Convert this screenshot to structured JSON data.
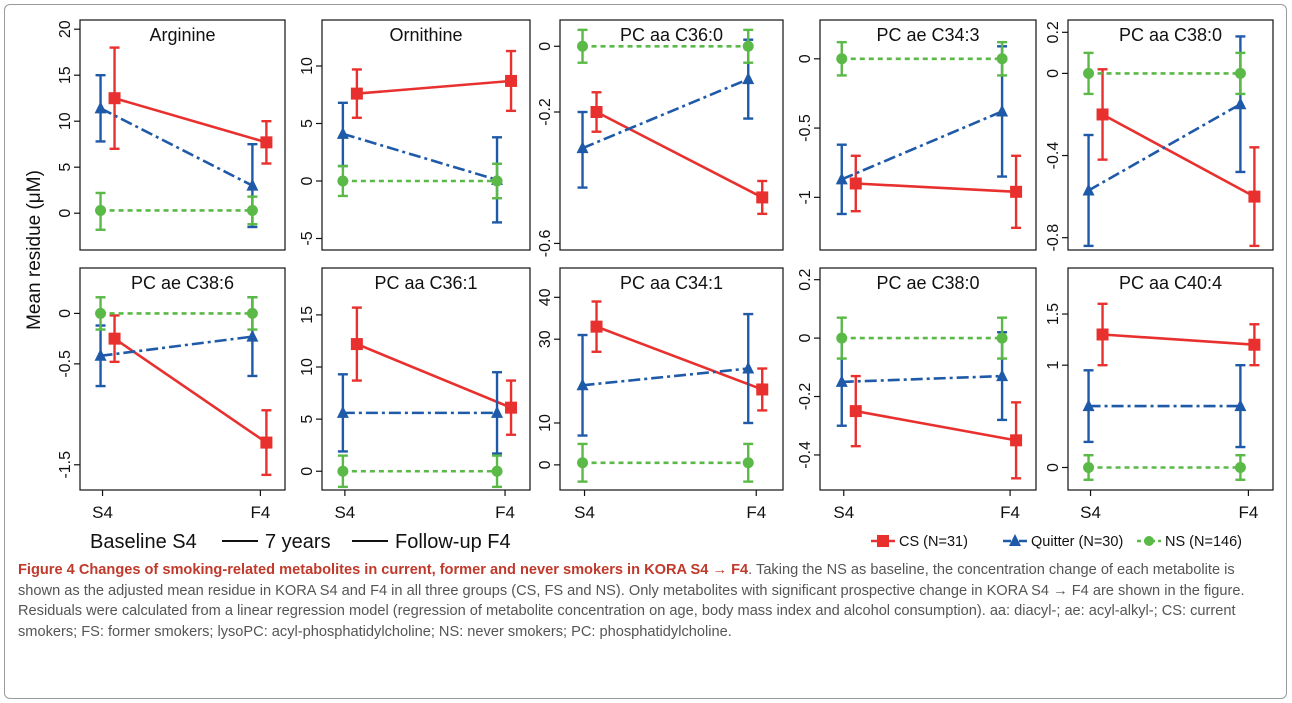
{
  "figure": {
    "ylabel": "Mean residue (μM)",
    "timeline": {
      "start": "Baseline S4",
      "middle": "7 years",
      "end": "Follow-up F4"
    },
    "legend": [
      {
        "label": "CS (N=31)",
        "color": "#e8312f",
        "marker": "square",
        "line": "solid"
      },
      {
        "label": "Quitter (N=30)",
        "color": "#1f5aa8",
        "marker": "triangle",
        "line": "dashdot"
      },
      {
        "label": "NS (N=146)",
        "color": "#5ab947",
        "marker": "circle",
        "line": "dotted"
      }
    ],
    "colors": {
      "cs": "#e8312f",
      "quitter": "#1f5aa8",
      "ns": "#5ab947"
    }
  },
  "caption": {
    "lead": "Figure 4",
    "title": "Changes of smoking-related metabolites in current, former and never smokers in KORA S4",
    "title_arrow": "→",
    "title_end": "F4",
    "line1": ". Taking the NS as baseline, the concentration change of each metabolite is shown as the adjusted mean residue in KORA S4 and F4 in all three groups (CS, FS and NS).",
    "line2": "Only metabolites with significant prospective change in KORA S4 → F4 are shown in the figure. Residuals were calculated from a linear regression model (regression of metabolite concentration on age, body mass index and alcohol consumption). aa: diacyl-; ae: acyl-alkyl-; CS: current smokers; FS: former smokers; lysoPC: acyl-phosphatidylcholine; NS: never smokers; PC: phosphatidylcholine."
  },
  "chart_data": [
    {
      "type": "line",
      "title": "Arginine",
      "categories": [
        "S4",
        "F4"
      ],
      "ylim": [
        -4,
        21
      ],
      "yticks": [
        0,
        5,
        10,
        15,
        20
      ],
      "series": [
        {
          "name": "CS (N=31)",
          "values": [
            12.5,
            7.7
          ],
          "lower": [
            7.0,
            5.4
          ],
          "upper": [
            18.0,
            10.0
          ]
        },
        {
          "name": "Quitter (N=30)",
          "values": [
            11.4,
            3.0
          ],
          "lower": [
            7.8,
            -1.5
          ],
          "upper": [
            15.0,
            7.5
          ]
        },
        {
          "name": "NS (N=146)",
          "values": [
            0.3,
            0.3
          ],
          "lower": [
            -1.8,
            -1.2
          ],
          "upper": [
            2.2,
            1.8
          ]
        }
      ]
    },
    {
      "type": "line",
      "title": "Ornithine",
      "categories": [
        "S4",
        "F4"
      ],
      "ylim": [
        -6,
        14
      ],
      "yticks": [
        -5,
        0,
        5,
        10
      ],
      "series": [
        {
          "name": "CS (N=31)",
          "values": [
            7.6,
            8.7
          ],
          "lower": [
            5.5,
            6.1
          ],
          "upper": [
            9.7,
            11.3
          ]
        },
        {
          "name": "Quitter (N=30)",
          "values": [
            4.1,
            0.1
          ],
          "lower": [
            1.3,
            -3.6
          ],
          "upper": [
            6.8,
            3.8
          ]
        },
        {
          "name": "NS (N=146)",
          "values": [
            0.0,
            0.0
          ],
          "lower": [
            -1.3,
            -1.5
          ],
          "upper": [
            1.3,
            1.5
          ]
        }
      ]
    },
    {
      "type": "line",
      "title": "PC aa C36:0",
      "categories": [
        "S4",
        "F4"
      ],
      "ylim": [
        -0.62,
        0.08
      ],
      "yticks": [
        -0.6,
        -0.2,
        0.0
      ],
      "series": [
        {
          "name": "CS (N=31)",
          "values": [
            -0.2,
            -0.46
          ],
          "lower": [
            -0.26,
            -0.51
          ],
          "upper": [
            -0.14,
            -0.41
          ]
        },
        {
          "name": "Quitter (N=30)",
          "values": [
            -0.31,
            -0.1
          ],
          "lower": [
            -0.43,
            -0.22
          ],
          "upper": [
            -0.2,
            0.02
          ]
        },
        {
          "name": "NS (N=146)",
          "values": [
            0.0,
            0.0
          ],
          "lower": [
            -0.05,
            -0.05
          ],
          "upper": [
            0.05,
            0.05
          ]
        }
      ]
    },
    {
      "type": "line",
      "title": "PC ae C34:3",
      "categories": [
        "S4",
        "F4"
      ],
      "ylim": [
        -1.38,
        0.28
      ],
      "yticks": [
        -1.0,
        -0.5,
        0.0
      ],
      "series": [
        {
          "name": "CS (N=31)",
          "values": [
            -0.9,
            -0.96
          ],
          "lower": [
            -1.1,
            -1.22
          ],
          "upper": [
            -0.7,
            -0.7
          ]
        },
        {
          "name": "Quitter (N=30)",
          "values": [
            -0.87,
            -0.38
          ],
          "lower": [
            -1.12,
            -0.85
          ],
          "upper": [
            -0.62,
            0.09
          ]
        },
        {
          "name": "NS (N=146)",
          "values": [
            0.0,
            0.0
          ],
          "lower": [
            -0.12,
            -0.12
          ],
          "upper": [
            0.12,
            0.12
          ]
        }
      ]
    },
    {
      "type": "line",
      "title": "PC aa C38:0",
      "categories": [
        "S4",
        "F4"
      ],
      "ylim": [
        -0.86,
        0.26
      ],
      "yticks": [
        -0.8,
        -0.4,
        0.0,
        0.2
      ],
      "series": [
        {
          "name": "CS (N=31)",
          "values": [
            -0.2,
            -0.6
          ],
          "lower": [
            -0.42,
            -0.84
          ],
          "upper": [
            0.02,
            -0.36
          ]
        },
        {
          "name": "Quitter (N=30)",
          "values": [
            -0.57,
            -0.15
          ],
          "lower": [
            -0.84,
            -0.48
          ],
          "upper": [
            -0.3,
            0.18
          ]
        },
        {
          "name": "NS (N=146)",
          "values": [
            0.0,
            0.0
          ],
          "lower": [
            -0.1,
            -0.1
          ],
          "upper": [
            0.1,
            0.1
          ]
        }
      ]
    },
    {
      "type": "line",
      "title": "PC ae C38:6",
      "categories": [
        "S4",
        "F4"
      ],
      "ylim": [
        -1.75,
        0.45
      ],
      "yticks": [
        -1.5,
        -0.5,
        0.0
      ],
      "series": [
        {
          "name": "CS (N=31)",
          "values": [
            -0.25,
            -1.28
          ],
          "lower": [
            -0.48,
            -1.6
          ],
          "upper": [
            -0.02,
            -0.96
          ]
        },
        {
          "name": "Quitter (N=30)",
          "values": [
            -0.42,
            -0.23
          ],
          "lower": [
            -0.72,
            -0.62
          ],
          "upper": [
            -0.12,
            0.16
          ]
        },
        {
          "name": "NS (N=146)",
          "values": [
            0.0,
            0.0
          ],
          "lower": [
            -0.16,
            -0.16
          ],
          "upper": [
            0.16,
            0.16
          ]
        }
      ]
    },
    {
      "type": "line",
      "title": "PC aa C36:1",
      "categories": [
        "S4",
        "F4"
      ],
      "ylim": [
        -1.8,
        19.5
      ],
      "yticks": [
        0,
        5,
        10,
        15
      ],
      "series": [
        {
          "name": "CS (N=31)",
          "values": [
            12.2,
            6.1
          ],
          "lower": [
            8.7,
            3.5
          ],
          "upper": [
            15.7,
            8.7
          ]
        },
        {
          "name": "Quitter (N=30)",
          "values": [
            5.6,
            5.6
          ],
          "lower": [
            1.9,
            1.7
          ],
          "upper": [
            9.3,
            9.5
          ]
        },
        {
          "name": "NS (N=146)",
          "values": [
            0.0,
            0.0
          ],
          "lower": [
            -1.5,
            -1.5
          ],
          "upper": [
            1.5,
            1.5
          ]
        }
      ]
    },
    {
      "type": "line",
      "title": "PC aa C34:1",
      "categories": [
        "S4",
        "F4"
      ],
      "ylim": [
        -6,
        47
      ],
      "yticks": [
        0,
        10,
        30,
        40
      ],
      "series": [
        {
          "name": "CS (N=31)",
          "values": [
            33,
            18
          ],
          "lower": [
            27,
            13
          ],
          "upper": [
            39,
            23
          ]
        },
        {
          "name": "Quitter (N=30)",
          "values": [
            19,
            23
          ],
          "lower": [
            7,
            10
          ],
          "upper": [
            31,
            36
          ]
        },
        {
          "name": "NS (N=146)",
          "values": [
            0.5,
            0.5
          ],
          "lower": [
            -4,
            -4
          ],
          "upper": [
            5,
            5
          ]
        }
      ]
    },
    {
      "type": "line",
      "title": "PC ae C38:0",
      "categories": [
        "S4",
        "F4"
      ],
      "ylim": [
        -0.52,
        0.24
      ],
      "yticks": [
        -0.4,
        -0.2,
        0.0,
        0.2
      ],
      "series": [
        {
          "name": "CS (N=31)",
          "values": [
            -0.25,
            -0.35
          ],
          "lower": [
            -0.37,
            -0.48
          ],
          "upper": [
            -0.13,
            -0.22
          ]
        },
        {
          "name": "Quitter (N=30)",
          "values": [
            -0.15,
            -0.13
          ],
          "lower": [
            -0.3,
            -0.28
          ],
          "upper": [
            0.0,
            0.02
          ]
        },
        {
          "name": "NS (N=146)",
          "values": [
            0.0,
            0.0
          ],
          "lower": [
            -0.07,
            -0.07
          ],
          "upper": [
            0.07,
            0.07
          ]
        }
      ]
    },
    {
      "type": "line",
      "title": "PC aa C40:4",
      "categories": [
        "S4",
        "F4"
      ],
      "ylim": [
        -0.22,
        1.95
      ],
      "yticks": [
        0.0,
        1.0,
        1.5
      ],
      "series": [
        {
          "name": "CS (N=31)",
          "values": [
            1.3,
            1.2
          ],
          "lower": [
            1.0,
            1.0
          ],
          "upper": [
            1.6,
            1.4
          ]
        },
        {
          "name": "Quitter (N=30)",
          "values": [
            0.6,
            0.6
          ],
          "lower": [
            0.25,
            0.2
          ],
          "upper": [
            0.95,
            1.0
          ]
        },
        {
          "name": "NS (N=146)",
          "values": [
            0.0,
            0.0
          ],
          "lower": [
            -0.12,
            -0.12
          ],
          "upper": [
            0.12,
            0.12
          ]
        }
      ]
    }
  ]
}
